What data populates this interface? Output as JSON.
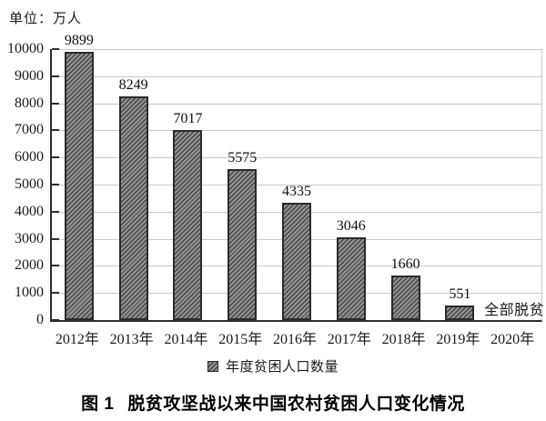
{
  "unit_label": "单位：万人",
  "caption": {
    "prefix": "图 1",
    "text": "脱贫攻坚战以来中国农村贫困人口变化情况"
  },
  "legend": {
    "marker": "hatched-square",
    "label": "年度贫困人口数量"
  },
  "colors": {
    "bar_fill": "#8f8f8f",
    "bar_hatch": "#2a2a2a",
    "bar_border": "#2b2b2b",
    "axis": "#2e2e2e",
    "gridline": "#c9c9c9",
    "text": "#1a1a1a"
  },
  "chart_data": {
    "type": "bar",
    "title": "图 1 脱贫攻坚战以来中国农村贫困人口变化情况",
    "unit": "单位：万人",
    "categories": [
      "2012年",
      "2013年",
      "2014年",
      "2015年",
      "2016年",
      "2017年",
      "2018年",
      "2019年",
      "2020年"
    ],
    "values": [
      9899,
      8249,
      7017,
      5575,
      4335,
      3046,
      1660,
      551,
      null
    ],
    "bar_labels": [
      "9899",
      "8249",
      "7017",
      "5575",
      "4335",
      "3046",
      "1660",
      "551",
      "全部脱贫"
    ],
    "annotations": [
      {
        "category": "2020年",
        "text": "全部脱贫",
        "position": "baseline"
      }
    ],
    "xlabel": "",
    "ylabel": "单位：万人",
    "ylim": [
      0,
      10000
    ],
    "yticks": [
      0,
      1000,
      2000,
      3000,
      4000,
      5000,
      6000,
      7000,
      8000,
      9000,
      10000
    ],
    "grid": true,
    "hatch": "diagonal-forward",
    "legend": [
      "年度贫困人口数量"
    ],
    "legend_position": "bottom"
  }
}
